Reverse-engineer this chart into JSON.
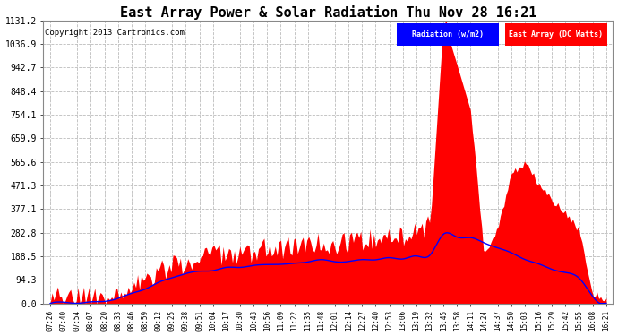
{
  "title": "East Array Power & Solar Radiation Thu Nov 28 16:21",
  "copyright": "Copyright 2013 Cartronics.com",
  "legend_labels": [
    "Radiation (w/m2)",
    "East Array (DC Watts)"
  ],
  "legend_colors": [
    "blue",
    "red"
  ],
  "y_ticks": [
    0.0,
    94.3,
    188.5,
    282.8,
    377.1,
    471.3,
    565.6,
    659.9,
    754.1,
    848.4,
    942.7,
    1036.9,
    1131.2
  ],
  "y_max": 1131.2,
  "y_min": 0.0,
  "background_color": "#ffffff",
  "plot_bg_color": "#ffffff",
  "grid_color": "#bbbbbb",
  "fill_color": "red",
  "line_color": "blue",
  "title_fontsize": 11,
  "x_labels": [
    "07:26",
    "07:40",
    "07:54",
    "08:07",
    "08:20",
    "08:33",
    "08:46",
    "08:59",
    "09:12",
    "09:25",
    "09:38",
    "09:51",
    "10:04",
    "10:17",
    "10:30",
    "10:43",
    "10:56",
    "11:09",
    "11:22",
    "11:35",
    "11:48",
    "12:01",
    "12:14",
    "12:27",
    "12:40",
    "12:53",
    "13:06",
    "13:19",
    "13:32",
    "13:45",
    "13:58",
    "14:11",
    "14:24",
    "14:37",
    "14:50",
    "15:03",
    "15:16",
    "15:29",
    "15:42",
    "15:55",
    "16:08",
    "16:21"
  ],
  "power_values": [
    0,
    2,
    5,
    8,
    15,
    30,
    55,
    80,
    110,
    130,
    150,
    165,
    175,
    185,
    195,
    205,
    215,
    205,
    210,
    230,
    240,
    225,
    235,
    245,
    250,
    255,
    260,
    270,
    300,
    1131,
    950,
    780,
    200,
    280,
    500,
    550,
    480,
    420,
    350,
    290,
    50,
    10
  ],
  "radiation_values": [
    0,
    1,
    3,
    5,
    10,
    20,
    40,
    60,
    80,
    100,
    115,
    125,
    130,
    140,
    148,
    155,
    160,
    158,
    162,
    168,
    172,
    168,
    170,
    175,
    178,
    180,
    182,
    185,
    190,
    280,
    270,
    260,
    240,
    220,
    200,
    180,
    160,
    140,
    120,
    100,
    30,
    5
  ]
}
